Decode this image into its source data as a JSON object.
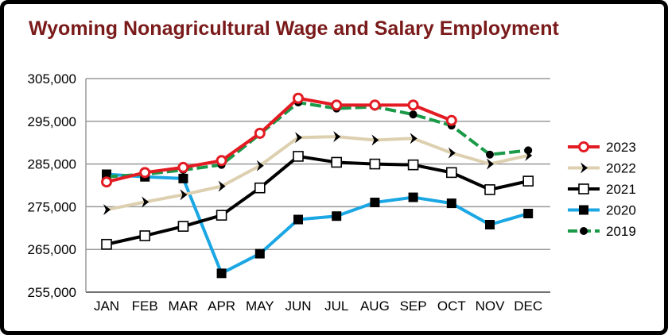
{
  "chart_data": {
    "type": "line",
    "title": "Wyoming Nonagricultural Wage and Salary Employment",
    "xlabel": "",
    "ylabel": "",
    "categories": [
      "JAN",
      "FEB",
      "MAR",
      "APR",
      "MAY",
      "JUN",
      "JUL",
      "AUG",
      "SEP",
      "OCT",
      "NOV",
      "DEC"
    ],
    "ylim": [
      255000,
      305000
    ],
    "yticks": [
      255000,
      265000,
      275000,
      285000,
      295000,
      305000
    ],
    "ytick_labels": [
      "255,000",
      "265,000",
      "275,000",
      "285,000",
      "295,000",
      "305,000"
    ],
    "grid": "horizontal",
    "legend_position": "right",
    "series": [
      {
        "name": "2023",
        "color": "#e31b23",
        "marker": "hollow-circle",
        "values": [
          280800,
          283000,
          284200,
          285800,
          292200,
          300400,
          298800,
          298800,
          298800,
          295200,
          null,
          null
        ]
      },
      {
        "name": "2022",
        "color": "#ddd0b0",
        "marker": "chevron",
        "values": [
          274300,
          276100,
          277800,
          279800,
          284600,
          291200,
          291400,
          290600,
          291000,
          287600,
          285000,
          287000
        ]
      },
      {
        "name": "2021",
        "color": "#000000",
        "marker": "hollow-square",
        "values": [
          266200,
          268200,
          270400,
          273000,
          279400,
          286800,
          285400,
          285000,
          284800,
          283000,
          279000,
          281000
        ]
      },
      {
        "name": "2020",
        "color": "#1aa7e3",
        "marker": "filled-square",
        "values": [
          282600,
          282000,
          281600,
          259400,
          264000,
          272000,
          272800,
          276000,
          277200,
          275800,
          270800,
          273400
        ]
      },
      {
        "name": "2019",
        "color": "#1a9a48",
        "marker": "filled-circle",
        "values": [
          282000,
          282600,
          283600,
          284800,
          292000,
          299400,
          298000,
          298400,
          296600,
          294000,
          287200,
          288200
        ]
      }
    ]
  }
}
